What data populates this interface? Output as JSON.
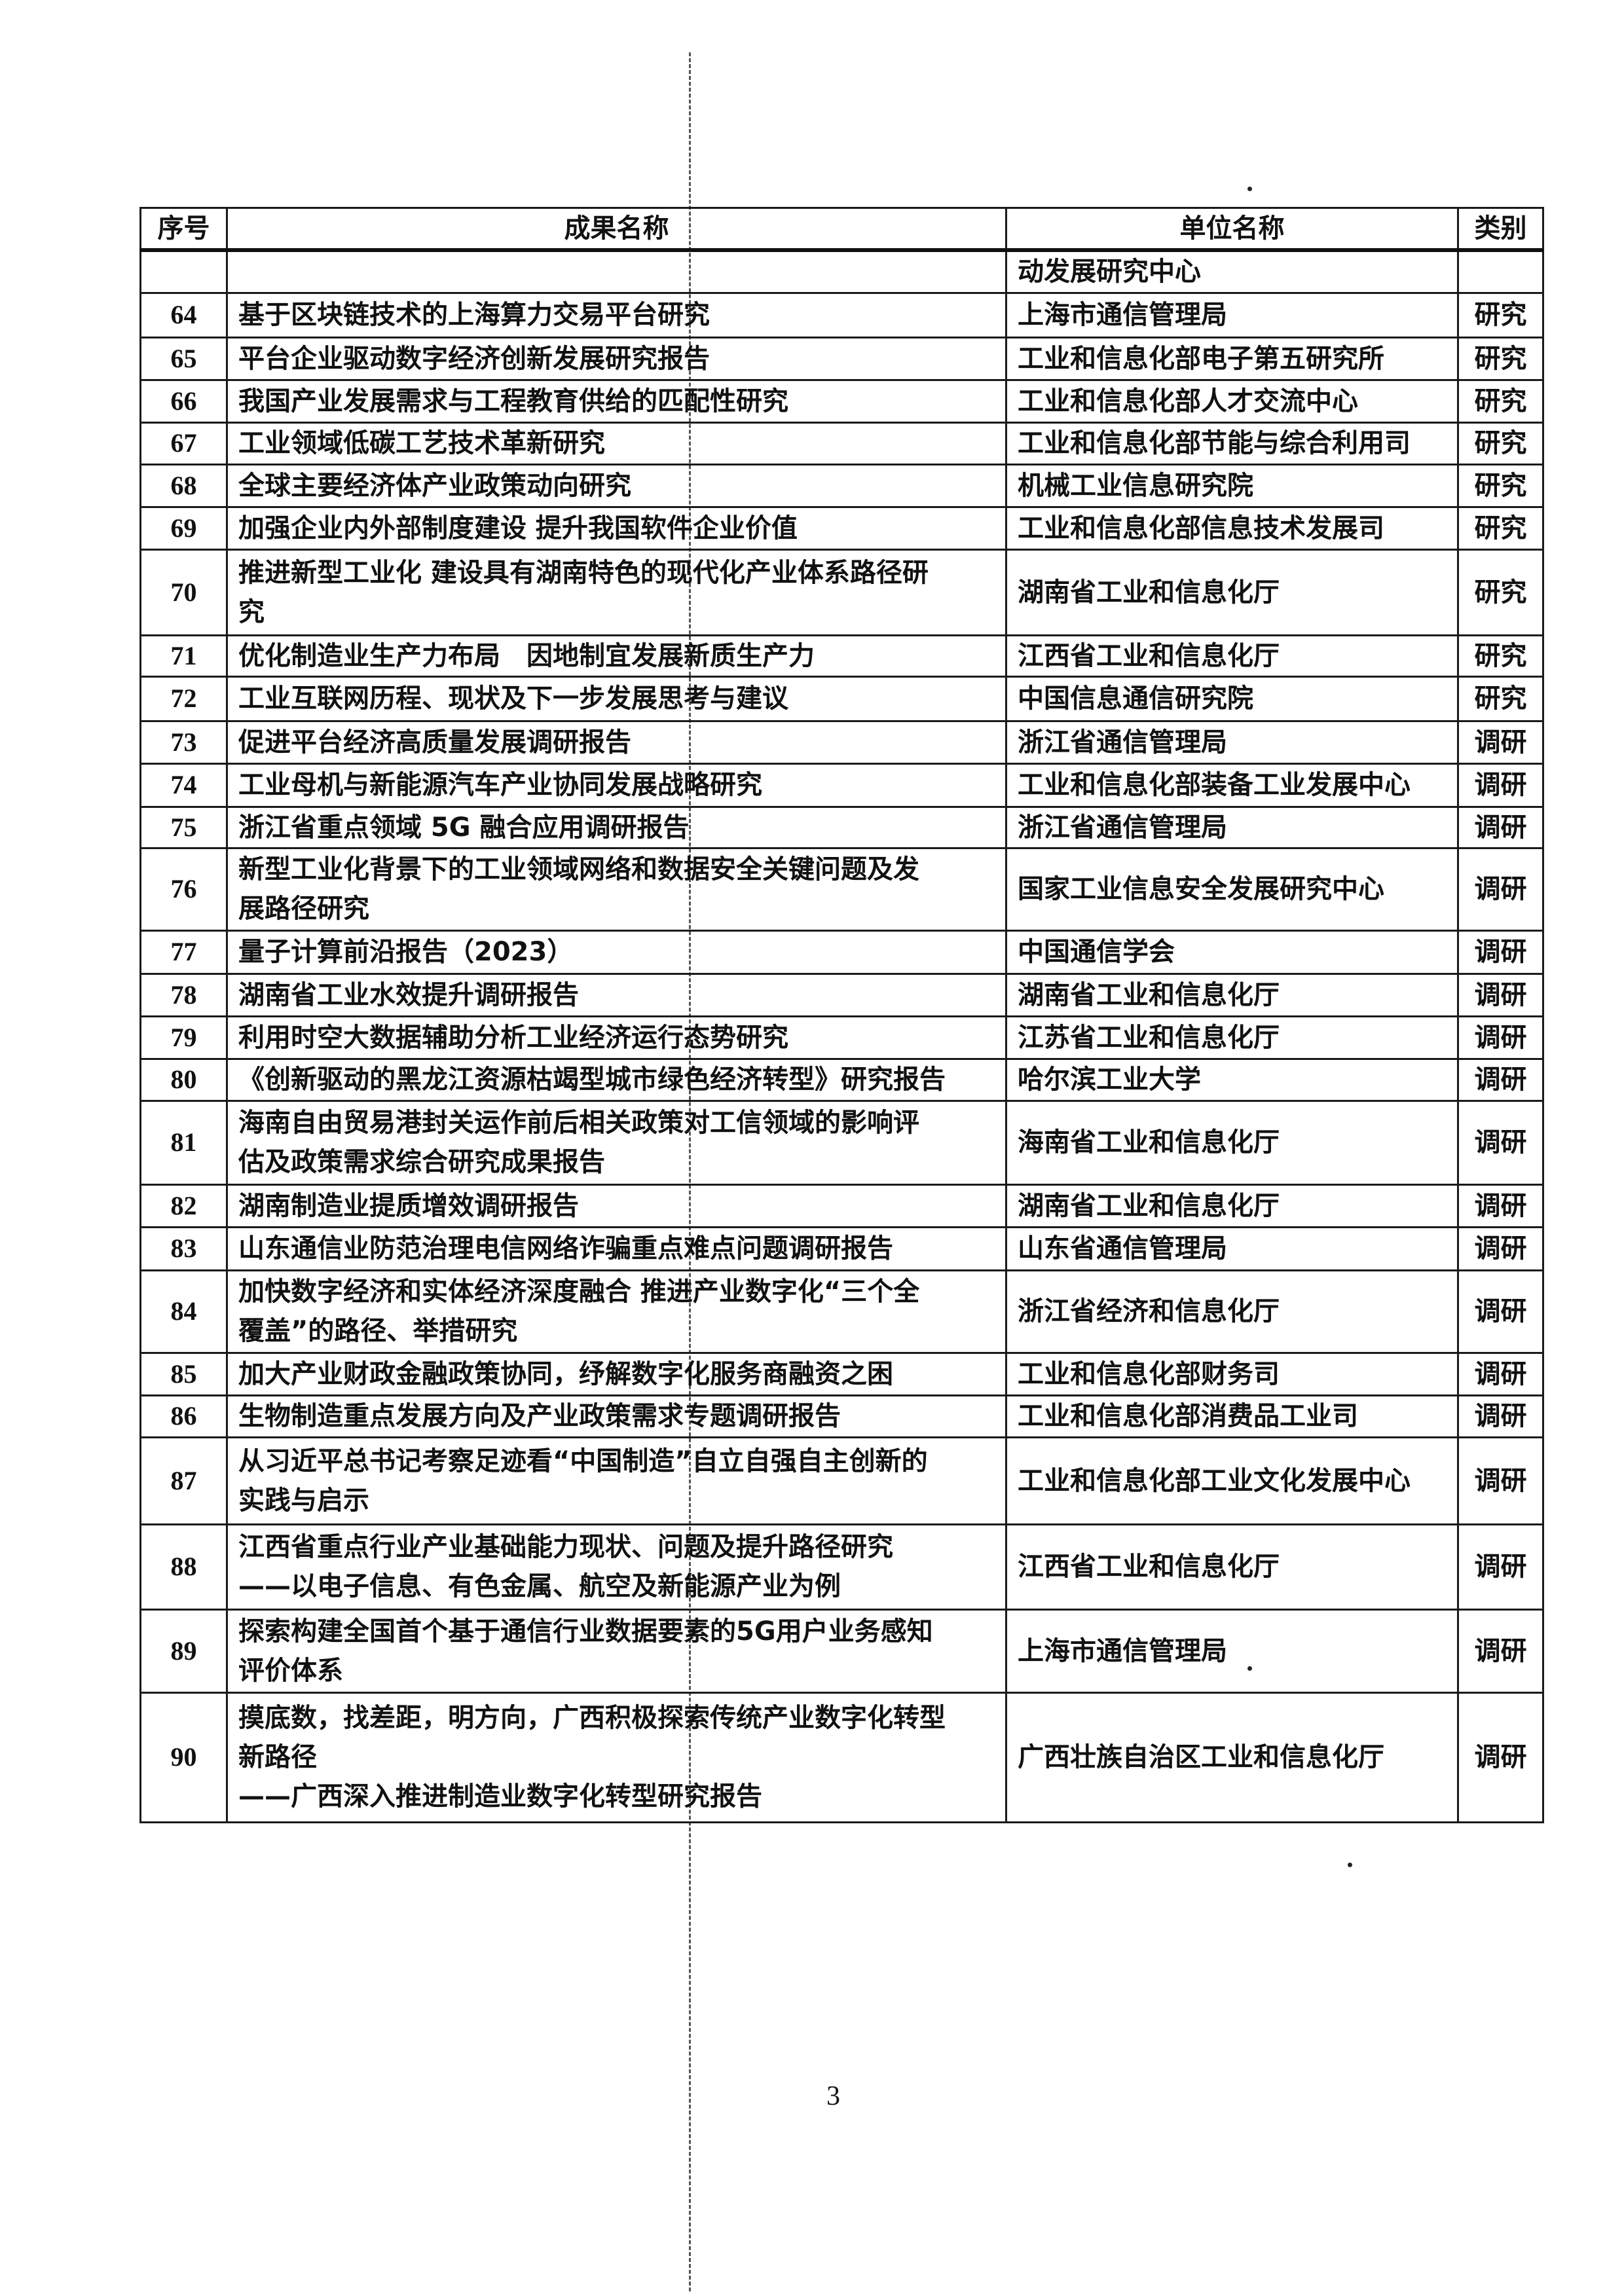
{
  "table": {
    "headers": [
      "序号",
      "成果名称",
      "单位名称",
      "类别"
    ],
    "rows": [
      {
        "no": "",
        "title": [
          ""
        ],
        "unit": "动发展研究中心",
        "category": ""
      },
      {
        "no": "64",
        "title": [
          "基于区块链技术的上海算力交易平台研究"
        ],
        "unit": "上海市通信管理局",
        "category": "研究"
      },
      {
        "no": "65",
        "title": [
          "平台企业驱动数字经济创新发展研究报告"
        ],
        "unit": "工业和信息化部电子第五研究所",
        "category": "研究"
      },
      {
        "no": "66",
        "title": [
          "我国产业发展需求与工程教育供给的匹配性研究"
        ],
        "unit": "工业和信息化部人才交流中心",
        "category": "研究"
      },
      {
        "no": "67",
        "title": [
          "工业领域低碳工艺技术革新研究"
        ],
        "unit": "工业和信息化部节能与综合利用司",
        "category": "研究"
      },
      {
        "no": "68",
        "title": [
          "全球主要经济体产业政策动向研究"
        ],
        "unit": "机械工业信息研究院",
        "category": "研究"
      },
      {
        "no": "69",
        "title": [
          "加强企业内外部制度建设 提升我国软件企业价值"
        ],
        "unit": "工业和信息化部信息技术发展司",
        "category": "研究"
      },
      {
        "no": "70",
        "title": [
          "推进新型工业化 建设具有湖南特色的现代化产业体系路径研",
          "究"
        ],
        "unit": "湖南省工业和信息化厅",
        "category": "研究"
      },
      {
        "no": "71",
        "title": [
          "优化制造业生产力布局　因地制宜发展新质生产力"
        ],
        "unit": "江西省工业和信息化厅",
        "category": "研究"
      },
      {
        "no": "72",
        "title": [
          "工业互联网历程、现状及下一步发展思考与建议"
        ],
        "unit": "中国信息通信研究院",
        "category": "研究"
      },
      {
        "no": "73",
        "title": [
          "促进平台经济高质量发展调研报告"
        ],
        "unit": "浙江省通信管理局",
        "category": "调研"
      },
      {
        "no": "74",
        "title": [
          "工业母机与新能源汽车产业协同发展战略研究"
        ],
        "unit": "工业和信息化部装备工业发展中心",
        "category": "调研"
      },
      {
        "no": "75",
        "title": [
          "浙江省重点领域 5G 融合应用调研报告"
        ],
        "unit": "浙江省通信管理局",
        "category": "调研"
      },
      {
        "no": "76",
        "title": [
          "新型工业化背景下的工业领域网络和数据安全关键问题及发",
          "展路径研究"
        ],
        "unit": "国家工业信息安全发展研究中心",
        "category": "调研"
      },
      {
        "no": "77",
        "title": [
          "量子计算前沿报告（2023）"
        ],
        "unit": "中国通信学会",
        "category": "调研"
      },
      {
        "no": "78",
        "title": [
          "湖南省工业水效提升调研报告"
        ],
        "unit": "湖南省工业和信息化厅",
        "category": "调研"
      },
      {
        "no": "79",
        "title": [
          "利用时空大数据辅助分析工业经济运行态势研究"
        ],
        "unit": "江苏省工业和信息化厅",
        "category": "调研"
      },
      {
        "no": "80",
        "title": [
          "《创新驱动的黑龙江资源枯竭型城市绿色经济转型》研究报告"
        ],
        "unit": "哈尔滨工业大学",
        "category": "调研"
      },
      {
        "no": "81",
        "title": [
          "海南自由贸易港封关运作前后相关政策对工信领域的影响评",
          "估及政策需求综合研究成果报告"
        ],
        "unit": "海南省工业和信息化厅",
        "category": "调研"
      },
      {
        "no": "82",
        "title": [
          "湖南制造业提质增效调研报告"
        ],
        "unit": "湖南省工业和信息化厅",
        "category": "调研"
      },
      {
        "no": "83",
        "title": [
          "山东通信业防范治理电信网络诈骗重点难点问题调研报告"
        ],
        "unit": "山东省通信管理局",
        "category": "调研"
      },
      {
        "no": "84",
        "title": [
          "加快数字经济和实体经济深度融合 推进产业数字化“三个全",
          "覆盖”的路径、举措研究"
        ],
        "unit": "浙江省经济和信息化厅",
        "category": "调研"
      },
      {
        "no": "85",
        "title": [
          "加大产业财政金融政策协同，纾解数字化服务商融资之困"
        ],
        "unit": "工业和信息化部财务司",
        "category": "调研"
      },
      {
        "no": "86",
        "title": [
          "生物制造重点发展方向及产业政策需求专题调研报告"
        ],
        "unit": "工业和信息化部消费品工业司",
        "category": "调研"
      },
      {
        "no": "87",
        "title": [
          "从习近平总书记考察足迹看“中国制造”自立自强自主创新的",
          "实践与启示"
        ],
        "unit": "工业和信息化部工业文化发展中心",
        "category": "调研"
      },
      {
        "no": "88",
        "title": [
          "江西省重点行业产业基础能力现状、问题及提升路径研究",
          "——以电子信息、有色金属、航空及新能源产业为例"
        ],
        "unit": "江西省工业和信息化厅",
        "category": "调研"
      },
      {
        "no": "89",
        "title": [
          "探索构建全国首个基于通信行业数据要素的5G用户业务感知",
          "评价体系"
        ],
        "unit": "上海市通信管理局",
        "category": "调研"
      },
      {
        "no": "90",
        "title": [
          "摸底数，找差距，明方向，广西积极探索传统产业数字化转型",
          "新路径",
          "——广西深入推进制造业数字化转型研究报告"
        ],
        "unit": "广西壮族自治区工业和信息化厅",
        "category": "调研"
      }
    ]
  },
  "page_number": "3"
}
